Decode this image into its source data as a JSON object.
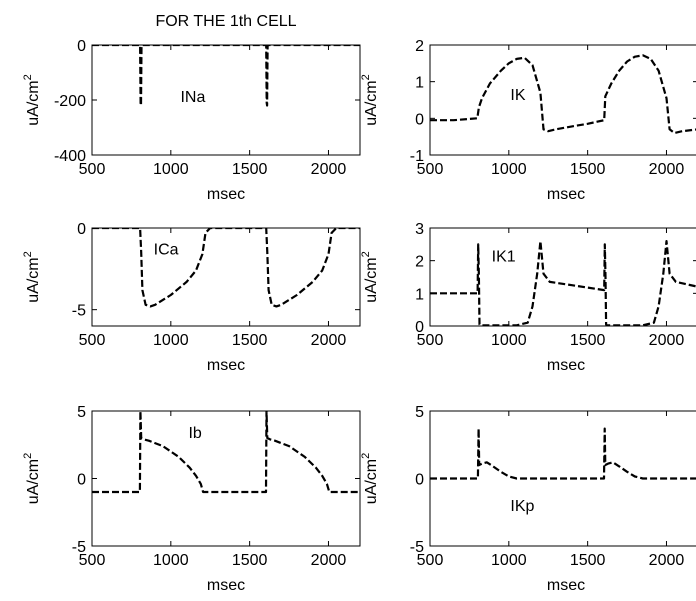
{
  "figure": {
    "title": "FOR THE 1th CELL"
  },
  "chart_data": [
    {
      "type": "line",
      "label": "INa",
      "xlabel": "msec",
      "ylabel_base": "uA/cm",
      "ylabel_sup": "2",
      "xlim": [
        500,
        2200
      ],
      "ylim": [
        -400,
        0
      ],
      "xticks": [
        500,
        1000,
        1500,
        2000
      ],
      "yticks": [
        -400,
        -200,
        0
      ],
      "grid": false,
      "series": [
        {
          "x": [
            500,
            805,
            808,
            811,
            814,
            817,
            1605,
            1608,
            1611,
            1614,
            1617,
            2200
          ],
          "y": [
            0,
            0,
            -210,
            -220,
            -5,
            0,
            0,
            -210,
            -220,
            -5,
            0,
            0
          ]
        }
      ]
    },
    {
      "type": "line",
      "label": "IK",
      "xlabel": "msec",
      "ylabel_base": "uA/cm",
      "ylabel_sup": "2",
      "xlim": [
        500,
        2200
      ],
      "ylim": [
        -1,
        2
      ],
      "xticks": [
        500,
        1000,
        1500,
        2000
      ],
      "yticks": [
        -1,
        0,
        1,
        2
      ],
      "grid": false,
      "series": [
        {
          "x": [
            500,
            650,
            800,
            810,
            830,
            880,
            950,
            1000,
            1050,
            1100,
            1150,
            1200,
            1220,
            1250,
            1300,
            1400,
            1500,
            1605,
            1612,
            1650,
            1700,
            1750,
            1800,
            1850,
            1900,
            1950,
            2000,
            2020,
            2050,
            2100,
            2200
          ],
          "y": [
            -0.05,
            -0.05,
            0.0,
            0.3,
            0.55,
            0.95,
            1.3,
            1.5,
            1.62,
            1.65,
            1.45,
            0.7,
            -0.3,
            -0.35,
            -0.3,
            -0.22,
            -0.15,
            -0.05,
            0.6,
            0.95,
            1.3,
            1.55,
            1.68,
            1.72,
            1.62,
            1.3,
            0.55,
            -0.3,
            -0.4,
            -0.35,
            -0.3
          ]
        }
      ]
    },
    {
      "type": "line",
      "label": "ICa",
      "xlabel": "msec",
      "ylabel_base": "uA/cm",
      "ylabel_sup": "2",
      "xlim": [
        500,
        2200
      ],
      "ylim": [
        -6,
        0
      ],
      "xticks": [
        500,
        1000,
        1500,
        2000
      ],
      "yticks": [
        -5,
        0
      ],
      "grid": false,
      "series": [
        {
          "x": [
            500,
            805,
            812,
            820,
            840,
            870,
            900,
            1000,
            1100,
            1160,
            1200,
            1220,
            1250,
            1605,
            1612,
            1620,
            1640,
            1670,
            1700,
            1800,
            1900,
            1960,
            2000,
            2020,
            2050,
            2200
          ],
          "y": [
            0,
            0,
            -1.5,
            -3.8,
            -4.7,
            -4.8,
            -4.7,
            -4.1,
            -3.3,
            -2.6,
            -1.6,
            -0.3,
            0,
            0,
            -1.5,
            -3.8,
            -4.7,
            -4.8,
            -4.7,
            -4.1,
            -3.3,
            -2.6,
            -1.6,
            -0.3,
            0,
            0
          ]
        }
      ]
    },
    {
      "type": "line",
      "label": "IK1",
      "xlabel": "msec",
      "ylabel_base": "uA/cm",
      "ylabel_sup": "2",
      "xlim": [
        500,
        2200
      ],
      "ylim": [
        0,
        3
      ],
      "xticks": [
        500,
        1000,
        1500,
        2000
      ],
      "yticks": [
        0,
        1,
        2,
        3
      ],
      "grid": false,
      "series": [
        {
          "x": [
            500,
            802,
            806,
            810,
            814,
            820,
            900,
            1050,
            1120,
            1150,
            1180,
            1200,
            1220,
            1260,
            1400,
            1605,
            1609,
            1613,
            1617,
            1620,
            1700,
            1850,
            1920,
            1950,
            1980,
            2000,
            2020,
            2060,
            2200
          ],
          "y": [
            1.0,
            1.0,
            2.5,
            1.5,
            0.05,
            0.02,
            0.02,
            0.02,
            0.1,
            0.6,
            1.6,
            2.6,
            1.6,
            1.35,
            1.25,
            1.1,
            2.5,
            1.5,
            0.05,
            0.02,
            0.02,
            0.02,
            0.1,
            0.6,
            1.6,
            2.6,
            1.6,
            1.35,
            1.2
          ]
        }
      ]
    },
    {
      "type": "line",
      "label": "Ib",
      "xlabel": "msec",
      "ylabel_base": "uA/cm",
      "ylabel_sup": "2",
      "xlim": [
        500,
        2200
      ],
      "ylim": [
        -5,
        5
      ],
      "xticks": [
        500,
        1000,
        1500,
        2000
      ],
      "yticks": [
        -5,
        0,
        5
      ],
      "grid": false,
      "series": [
        {
          "x": [
            500,
            804,
            807,
            812,
            830,
            860,
            950,
            1050,
            1120,
            1160,
            1190,
            1205,
            1220,
            1604,
            1607,
            1612,
            1630,
            1660,
            1750,
            1850,
            1920,
            1960,
            1990,
            2005,
            2020,
            2200
          ],
          "y": [
            -1.0,
            -1.0,
            5.0,
            3.0,
            2.9,
            2.8,
            2.4,
            1.6,
            0.8,
            0.2,
            -0.4,
            -1.0,
            -1.0,
            -1.0,
            5.0,
            3.0,
            2.9,
            2.8,
            2.4,
            1.6,
            0.8,
            0.2,
            -0.4,
            -1.0,
            -1.0,
            -1.0
          ]
        }
      ]
    },
    {
      "type": "line",
      "label": "IKp",
      "xlabel": "msec",
      "ylabel_base": "uA/cm",
      "ylabel_sup": "2",
      "xlim": [
        500,
        2200
      ],
      "ylim": [
        -5,
        5
      ],
      "xticks": [
        500,
        1000,
        1500,
        2000
      ],
      "yticks": [
        -5,
        0,
        5
      ],
      "grid": false,
      "series": [
        {
          "x": [
            500,
            804,
            808,
            812,
            830,
            860,
            900,
            950,
            1000,
            1050,
            1200,
            1604,
            1608,
            1612,
            1630,
            1660,
            1700,
            1750,
            1800,
            1850,
            2200
          ],
          "y": [
            0,
            0,
            3.7,
            1.0,
            1.1,
            1.2,
            0.9,
            0.5,
            0.15,
            0,
            0,
            0,
            3.7,
            1.0,
            1.1,
            1.2,
            0.9,
            0.5,
            0.15,
            0,
            0
          ]
        }
      ]
    }
  ]
}
